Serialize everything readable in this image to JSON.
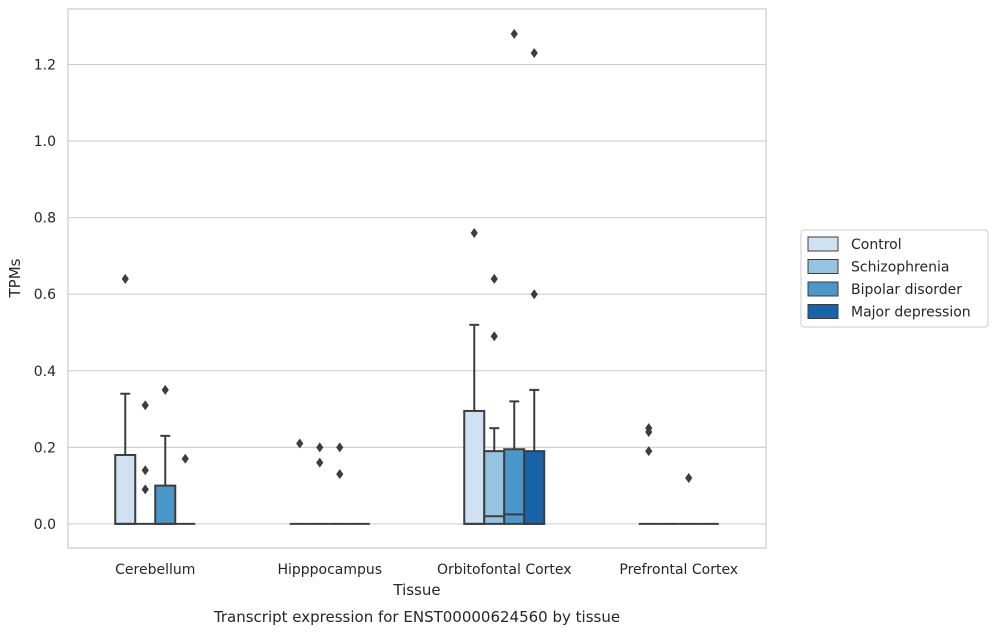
{
  "chart_data": {
    "type": "box",
    "xlabel": "Tissue",
    "ylabel": "TPMs",
    "caption": "Transcript expression for ENST00000624560 by tissue",
    "ylim": [
      -0.063,
      1.345
    ],
    "yticks": [
      0.0,
      0.2,
      0.4,
      0.6,
      0.8,
      1.0,
      1.2
    ],
    "ytick_labels": [
      "0.0",
      "0.2",
      "0.4",
      "0.6",
      "0.8",
      "1.0",
      "1.2"
    ],
    "grid": "horizontal",
    "legend_position": "right",
    "categories": [
      "Cerebellum",
      "Hipppocampus",
      "Orbitofontal Cortex",
      "Prefrontal Cortex"
    ],
    "series": [
      {
        "name": "Control",
        "color": "#d0e1f2",
        "boxes": [
          {
            "q1": 0.0,
            "median": 0.0,
            "q3": 0.18,
            "whisker_low": 0.0,
            "whisker_high": 0.34,
            "outliers": [
              0.64
            ]
          },
          {
            "q1": 0.0,
            "median": 0.0,
            "q3": 0.0,
            "whisker_low": 0.0,
            "whisker_high": 0.0,
            "outliers": [
              0.21
            ]
          },
          {
            "q1": 0.0,
            "median": 0.0,
            "q3": 0.295,
            "whisker_low": 0.0,
            "whisker_high": 0.52,
            "outliers": [
              0.76
            ]
          },
          {
            "q1": 0.0,
            "median": 0.0,
            "q3": 0.0,
            "whisker_low": 0.0,
            "whisker_high": 0.0,
            "outliers": [
              0.25,
              0.24,
              0.19
            ]
          }
        ]
      },
      {
        "name": "Schizophrenia",
        "color": "#94c4df",
        "boxes": [
          {
            "q1": 0.0,
            "median": 0.0,
            "q3": 0.0,
            "whisker_low": 0.0,
            "whisker_high": 0.0,
            "outliers": [
              0.31,
              0.14,
              0.09
            ]
          },
          {
            "q1": 0.0,
            "median": 0.0,
            "q3": 0.0,
            "whisker_low": 0.0,
            "whisker_high": 0.0,
            "outliers": [
              0.2,
              0.16
            ]
          },
          {
            "q1": 0.0,
            "median": 0.02,
            "q3": 0.19,
            "whisker_low": 0.0,
            "whisker_high": 0.25,
            "outliers": [
              0.64,
              0.49
            ]
          },
          {
            "q1": 0.0,
            "median": 0.0,
            "q3": 0.0,
            "whisker_low": 0.0,
            "whisker_high": 0.0,
            "outliers": []
          }
        ]
      },
      {
        "name": "Bipolar disorder",
        "color": "#4a98c9",
        "boxes": [
          {
            "q1": 0.0,
            "median": 0.0,
            "q3": 0.1,
            "whisker_low": 0.0,
            "whisker_high": 0.23,
            "outliers": [
              0.35
            ]
          },
          {
            "q1": 0.0,
            "median": 0.0,
            "q3": 0.0,
            "whisker_low": 0.0,
            "whisker_high": 0.0,
            "outliers": [
              0.2,
              0.13
            ]
          },
          {
            "q1": 0.0,
            "median": 0.025,
            "q3": 0.195,
            "whisker_low": 0.0,
            "whisker_high": 0.32,
            "outliers": [
              1.28
            ]
          },
          {
            "q1": 0.0,
            "median": 0.0,
            "q3": 0.0,
            "whisker_low": 0.0,
            "whisker_high": 0.0,
            "outliers": [
              0.12
            ]
          }
        ]
      },
      {
        "name": "Major depression",
        "color": "#1764ab",
        "boxes": [
          {
            "q1": 0.0,
            "median": 0.0,
            "q3": 0.0,
            "whisker_low": 0.0,
            "whisker_high": 0.0,
            "outliers": [
              0.17
            ]
          },
          {
            "q1": 0.0,
            "median": 0.0,
            "q3": 0.0,
            "whisker_low": 0.0,
            "whisker_high": 0.0,
            "outliers": []
          },
          {
            "q1": 0.0,
            "median": 0.0,
            "q3": 0.19,
            "whisker_low": 0.0,
            "whisker_high": 0.35,
            "outliers": [
              1.23,
              0.6
            ]
          },
          {
            "q1": 0.0,
            "median": 0.0,
            "q3": 0.0,
            "whisker_low": 0.0,
            "whisker_high": 0.0,
            "outliers": []
          }
        ]
      }
    ]
  }
}
